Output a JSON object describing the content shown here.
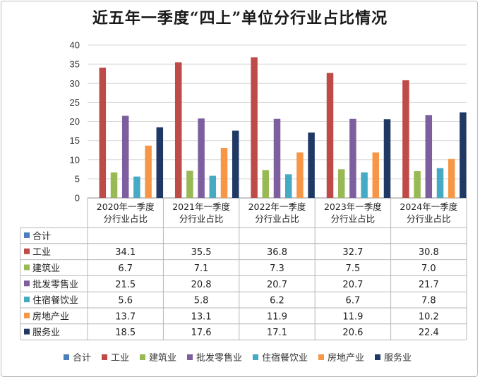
{
  "chart_data": {
    "type": "bar",
    "title": "近五年一季度“四上”单位分行业占比情况",
    "categories": [
      [
        "2020年一季度",
        "分行业占比"
      ],
      [
        "2021年一季度",
        "分行业占比"
      ],
      [
        "2022年一季度",
        "分行业占比"
      ],
      [
        "2023年一季度",
        "分行业占比"
      ],
      [
        "2024年一季度",
        "分行业占比"
      ]
    ],
    "ylim": [
      0,
      40
    ],
    "yticks": [
      0,
      5,
      10,
      15,
      20,
      25,
      30,
      35,
      40
    ],
    "grid": true,
    "legend": "bottom",
    "data_table": true,
    "series": [
      {
        "name": "合计",
        "color": "#4a7ebb",
        "values": [
          null,
          null,
          null,
          null,
          null
        ]
      },
      {
        "name": "工业",
        "color": "#be4b48",
        "values": [
          34.1,
          35.5,
          36.8,
          32.7,
          30.8
        ]
      },
      {
        "name": "建筑业",
        "color": "#98b954",
        "values": [
          6.7,
          7.1,
          7.3,
          7.5,
          7.0
        ]
      },
      {
        "name": "批发零售业",
        "color": "#7d5fa0",
        "values": [
          21.5,
          20.8,
          20.7,
          20.7,
          21.7
        ]
      },
      {
        "name": "住宿餐饮业",
        "color": "#46aac5",
        "values": [
          5.6,
          5.8,
          6.2,
          6.7,
          7.8
        ]
      },
      {
        "name": "房地产业",
        "color": "#f79646",
        "values": [
          13.7,
          13.1,
          11.9,
          11.9,
          10.2
        ]
      },
      {
        "name": "服务业",
        "color": "#1f3864",
        "values": [
          18.5,
          17.6,
          17.1,
          20.6,
          22.4
        ]
      }
    ]
  }
}
